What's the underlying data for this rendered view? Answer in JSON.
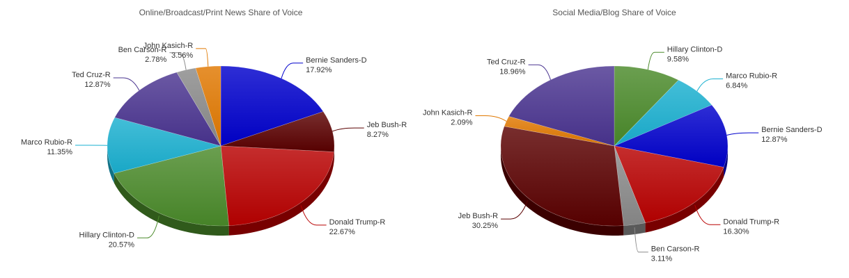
{
  "chart_data": [
    {
      "type": "pie",
      "title": "Online/Broadcast/Print News Share of Voice",
      "categories": [
        "Bernie Sanders-D",
        "Jeb Bush-R",
        "Donald Trump-R",
        "Hillary Clinton-D",
        "Marco Rubio-R",
        "Ted Cruz-R",
        "Ben Carson-R",
        "John Kasich-R"
      ],
      "values": [
        17.92,
        8.27,
        22.67,
        20.57,
        11.35,
        12.87,
        2.78,
        3.56
      ],
      "value_labels": [
        "17.92%",
        "8.27%",
        "22.67%",
        "20.57%",
        "11.35%",
        "12.87%",
        "2.78%",
        "3.56%"
      ],
      "colors": [
        "#0000cc",
        "#5a0000",
        "#b80000",
        "#4a8a2a",
        "#1ab0d0",
        "#4a3490",
        "#8a8a8a",
        "#e07800"
      ]
    },
    {
      "type": "pie",
      "title": "Social Media/Blog Share of Voice",
      "categories": [
        "Hillary Clinton-D",
        "Marco Rubio-R",
        "Bernie Sanders-D",
        "Donald Trump-R",
        "Ben Carson-R",
        "Jeb Bush-R",
        "John Kasich-R",
        "Ted Cruz-R"
      ],
      "values": [
        9.58,
        6.84,
        12.87,
        16.3,
        3.11,
        30.25,
        2.09,
        18.96
      ],
      "value_labels": [
        "9.58%",
        "6.84%",
        "12.87%",
        "16.30%",
        "3.11%",
        "30.25%",
        "2.09%",
        "18.96%"
      ],
      "colors": [
        "#4a8a2a",
        "#1ab0d0",
        "#0000cc",
        "#b80000",
        "#8a8a8a",
        "#5a0000",
        "#e07800",
        "#4a3490"
      ]
    }
  ]
}
